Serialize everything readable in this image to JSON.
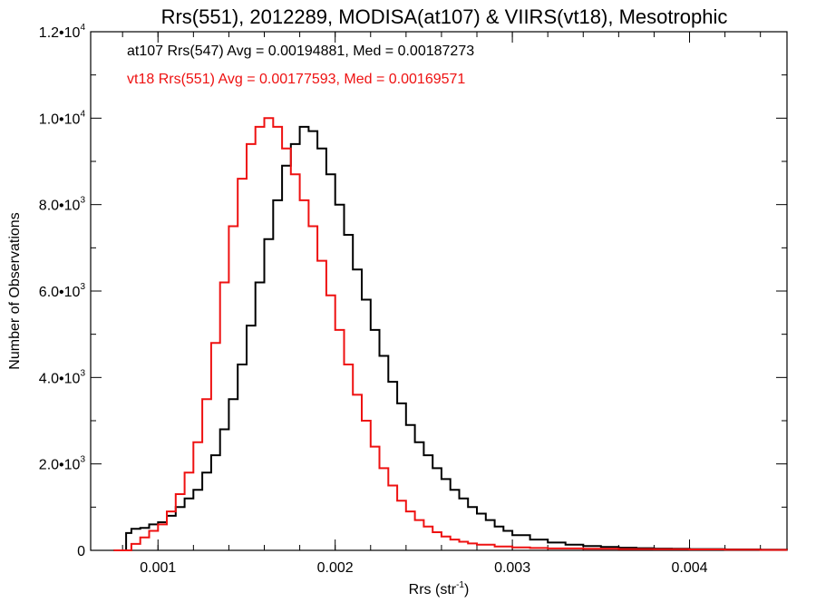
{
  "chart_data": {
    "type": "line",
    "title": "Rrs(551), 2012289, MODISA(at107) & VIIRS(vt18), Mesotrophic",
    "xlabel": "Rrs (str",
    "xlabel_sup": "-1",
    "xlabel_suffix": ")",
    "ylabel": "Number of Observations",
    "xlim": [
      0.00062,
      0.00455
    ],
    "ylim": [
      0,
      12000
    ],
    "x_ticks": [
      {
        "value": 0.001,
        "label": "0.001"
      },
      {
        "value": 0.002,
        "label": "0.002"
      },
      {
        "value": 0.003,
        "label": "0.003"
      },
      {
        "value": 0.004,
        "label": "0.004"
      }
    ],
    "y_ticks": [
      {
        "value": 0,
        "mantissa": "0",
        "exp": ""
      },
      {
        "value": 2000,
        "mantissa": "2.0•10",
        "exp": "3"
      },
      {
        "value": 4000,
        "mantissa": "4.0•10",
        "exp": "3"
      },
      {
        "value": 6000,
        "mantissa": "6.0•10",
        "exp": "3"
      },
      {
        "value": 8000,
        "mantissa": "8.0•10",
        "exp": "3"
      },
      {
        "value": 10000,
        "mantissa": "1.0•10",
        "exp": "4"
      },
      {
        "value": 12000,
        "mantissa": "1.2•10",
        "exp": "4"
      }
    ],
    "legend_position": "top-left",
    "series": [
      {
        "name": "at107 Rrs(547) Avg = 0.00194881, Med = 0.00187273",
        "color": "#000000",
        "points": [
          [
            0.00075,
            0
          ],
          [
            0.0008,
            0
          ],
          [
            0.00082,
            400
          ],
          [
            0.00085,
            500
          ],
          [
            0.0009,
            520
          ],
          [
            0.00095,
            600
          ],
          [
            0.001,
            650
          ],
          [
            0.00105,
            800
          ],
          [
            0.0011,
            1000
          ],
          [
            0.00115,
            1200
          ],
          [
            0.0012,
            1400
          ],
          [
            0.00125,
            1800
          ],
          [
            0.0013,
            2200
          ],
          [
            0.00135,
            2800
          ],
          [
            0.0014,
            3500
          ],
          [
            0.00145,
            4300
          ],
          [
            0.0015,
            5200
          ],
          [
            0.00155,
            6200
          ],
          [
            0.0016,
            7200
          ],
          [
            0.00165,
            8100
          ],
          [
            0.0017,
            8900
          ],
          [
            0.00175,
            9400
          ],
          [
            0.0018,
            9800
          ],
          [
            0.00185,
            9700
          ],
          [
            0.0019,
            9300
          ],
          [
            0.00195,
            8700
          ],
          [
            0.002,
            8000
          ],
          [
            0.00205,
            7300
          ],
          [
            0.0021,
            6500
          ],
          [
            0.00215,
            5800
          ],
          [
            0.0022,
            5100
          ],
          [
            0.00225,
            4500
          ],
          [
            0.0023,
            3900
          ],
          [
            0.00235,
            3400
          ],
          [
            0.0024,
            2900
          ],
          [
            0.00245,
            2500
          ],
          [
            0.0025,
            2200
          ],
          [
            0.00255,
            1900
          ],
          [
            0.0026,
            1650
          ],
          [
            0.00265,
            1400
          ],
          [
            0.0027,
            1200
          ],
          [
            0.00275,
            1000
          ],
          [
            0.0028,
            850
          ],
          [
            0.00285,
            700
          ],
          [
            0.0029,
            550
          ],
          [
            0.00295,
            450
          ],
          [
            0.003,
            350
          ],
          [
            0.0031,
            250
          ],
          [
            0.0032,
            180
          ],
          [
            0.0033,
            130
          ],
          [
            0.0034,
            100
          ],
          [
            0.0035,
            80
          ],
          [
            0.0036,
            60
          ],
          [
            0.0037,
            50
          ],
          [
            0.0038,
            40
          ],
          [
            0.0039,
            35
          ],
          [
            0.004,
            30
          ],
          [
            0.0042,
            20
          ],
          [
            0.0044,
            15
          ],
          [
            0.00455,
            10
          ]
        ]
      },
      {
        "name": "vt18 Rrs(551) Avg = 0.00177593, Med = 0.00169571",
        "color": "#ee1111",
        "points": [
          [
            0.00075,
            0
          ],
          [
            0.0008,
            0
          ],
          [
            0.00085,
            150
          ],
          [
            0.0009,
            300
          ],
          [
            0.00095,
            450
          ],
          [
            0.001,
            600
          ],
          [
            0.00105,
            900
          ],
          [
            0.0011,
            1300
          ],
          [
            0.00115,
            1800
          ],
          [
            0.0012,
            2500
          ],
          [
            0.00125,
            3500
          ],
          [
            0.0013,
            4800
          ],
          [
            0.00135,
            6200
          ],
          [
            0.0014,
            7500
          ],
          [
            0.00145,
            8600
          ],
          [
            0.0015,
            9400
          ],
          [
            0.00155,
            9800
          ],
          [
            0.0016,
            10000
          ],
          [
            0.00165,
            9800
          ],
          [
            0.0017,
            9300
          ],
          [
            0.00175,
            8700
          ],
          [
            0.0018,
            8100
          ],
          [
            0.00185,
            7500
          ],
          [
            0.0019,
            6700
          ],
          [
            0.00195,
            5900
          ],
          [
            0.002,
            5100
          ],
          [
            0.00205,
            4300
          ],
          [
            0.0021,
            3600
          ],
          [
            0.00215,
            3000
          ],
          [
            0.0022,
            2400
          ],
          [
            0.00225,
            1900
          ],
          [
            0.0023,
            1500
          ],
          [
            0.00235,
            1150
          ],
          [
            0.0024,
            900
          ],
          [
            0.00245,
            700
          ],
          [
            0.0025,
            550
          ],
          [
            0.00255,
            420
          ],
          [
            0.0026,
            320
          ],
          [
            0.00265,
            250
          ],
          [
            0.0027,
            200
          ],
          [
            0.00275,
            160
          ],
          [
            0.0028,
            130
          ],
          [
            0.0029,
            90
          ],
          [
            0.003,
            70
          ],
          [
            0.0031,
            55
          ],
          [
            0.0032,
            45
          ],
          [
            0.0034,
            35
          ],
          [
            0.0036,
            30
          ],
          [
            0.0038,
            25
          ],
          [
            0.004,
            20
          ],
          [
            0.0042,
            15
          ],
          [
            0.0044,
            10
          ],
          [
            0.00455,
            8
          ]
        ]
      }
    ]
  }
}
